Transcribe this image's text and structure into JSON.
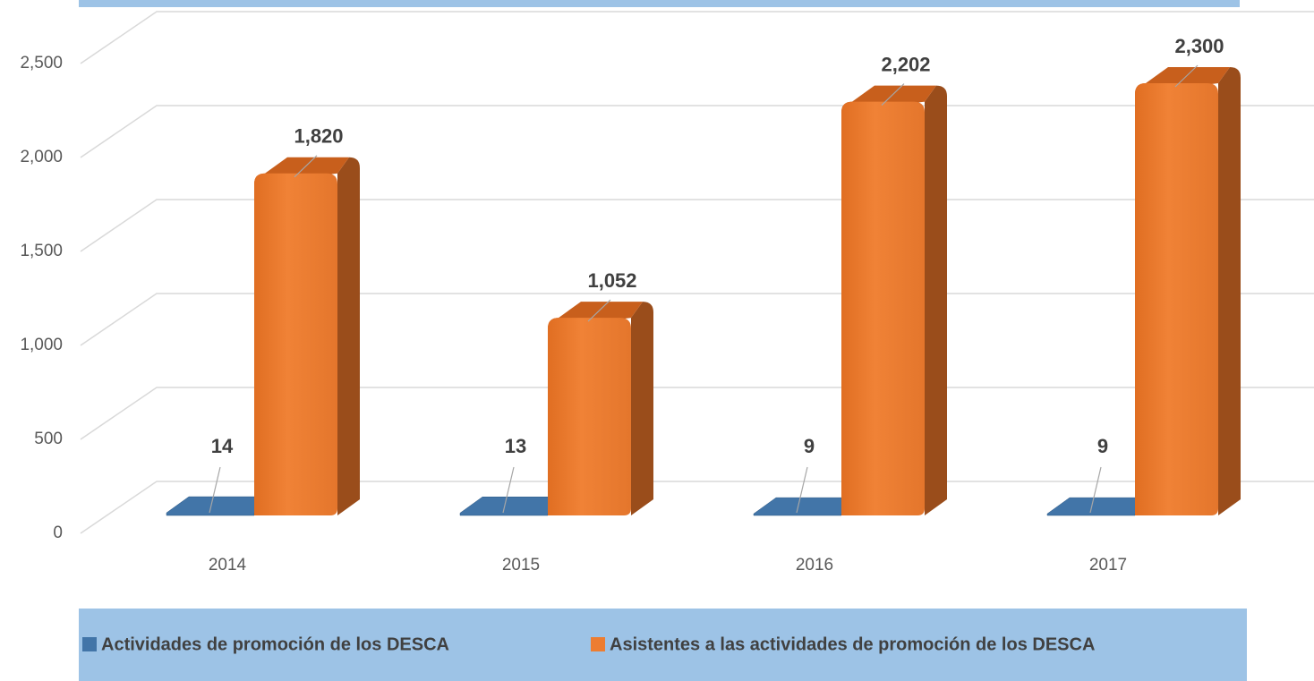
{
  "chart_data": {
    "type": "bar3d",
    "categories": [
      "2014",
      "2015",
      "2016",
      "2017"
    ],
    "series": [
      {
        "name": "Actividades de promoción de los DESCA",
        "color": "#4275a8",
        "values": [
          14,
          13,
          9,
          9
        ],
        "value_labels": [
          "14",
          "13",
          "9",
          "9"
        ]
      },
      {
        "name": "Asistentes a las actividades de promoción de los DESCA",
        "color": "#ed7d31",
        "values": [
          1820,
          1052,
          2202,
          2300
        ],
        "value_labels": [
          "1,820",
          "1,052",
          "2,202",
          "2,300"
        ]
      }
    ],
    "ylim": [
      0,
      2500
    ],
    "yticks": [
      0,
      500,
      {
        "value": 1000,
        "label": "1,000"
      },
      {
        "value": 1500,
        "label": "1,500"
      },
      {
        "value": 2000,
        "label": "2,000"
      },
      {
        "value": 2500,
        "label": "2,500"
      }
    ],
    "grid": true,
    "legend": "bottom"
  }
}
